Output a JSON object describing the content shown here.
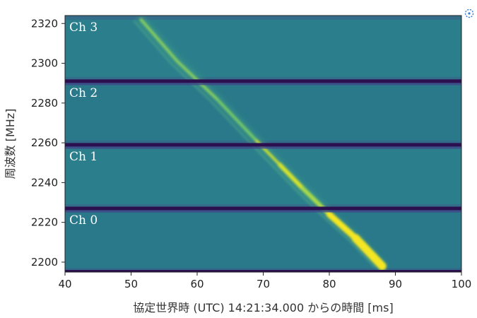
{
  "chart_data": {
    "type": "heatmap",
    "title": "",
    "xlabel": "協定世界時 (UTC) 14:21:34.000 からの時間 [ms]",
    "ylabel": "周波数 [MHz]",
    "xlim": [
      40,
      100
    ],
    "ylim": [
      2195,
      2324
    ],
    "x_ticks": [
      40,
      50,
      60,
      70,
      80,
      90,
      100
    ],
    "y_ticks": [
      2200,
      2220,
      2240,
      2260,
      2280,
      2300,
      2320
    ],
    "colormap": "viridis",
    "background_color": "#2a7d8a",
    "channels": [
      {
        "name": "Ch 0",
        "freq_range": [
          2195,
          2227
        ]
      },
      {
        "name": "Ch 1",
        "freq_range": [
          2227,
          2259
        ]
      },
      {
        "name": "Ch 2",
        "freq_range": [
          2259,
          2291
        ]
      },
      {
        "name": "Ch 3",
        "freq_range": [
          2291,
          2324
        ]
      }
    ],
    "channel_gaps_mhz": [
      2227,
      2259,
      2291
    ],
    "burst_track": [
      {
        "time_ms": 51.5,
        "freq_mhz": 2322
      },
      {
        "time_ms": 57.0,
        "freq_mhz": 2301
      },
      {
        "time_ms": 63.0,
        "freq_mhz": 2282
      },
      {
        "time_ms": 69.0,
        "freq_mhz": 2261
      },
      {
        "time_ms": 72.5,
        "freq_mhz": 2249
      },
      {
        "time_ms": 76.0,
        "freq_mhz": 2237
      },
      {
        "time_ms": 80.0,
        "freq_mhz": 2224
      },
      {
        "time_ms": 84.0,
        "freq_mhz": 2212
      },
      {
        "time_ms": 88.0,
        "freq_mhz": 2198
      }
    ]
  },
  "ui": {
    "corner_icon": "expand-icon"
  }
}
